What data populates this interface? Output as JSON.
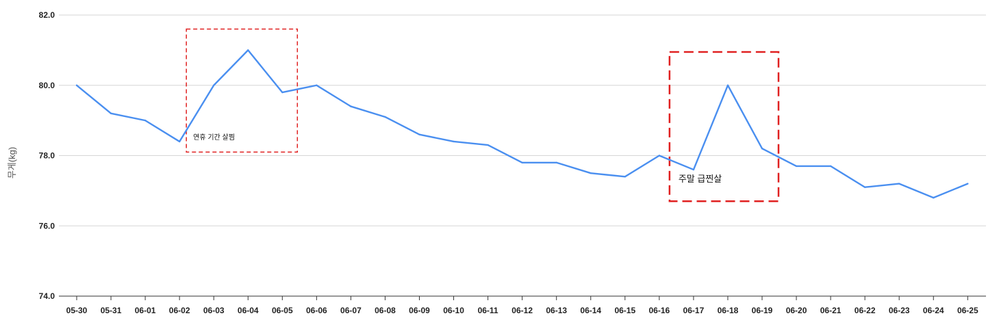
{
  "chart_data": {
    "type": "line",
    "title": "",
    "xlabel": "",
    "ylabel": "무게(kg)",
    "ylim": [
      74.0,
      82.0
    ],
    "yticks": [
      "74.0",
      "76.0",
      "78.0",
      "80.0",
      "82.0"
    ],
    "grid": true,
    "categories": [
      "05-30",
      "05-31",
      "06-01",
      "06-02",
      "06-03",
      "06-04",
      "06-05",
      "06-06",
      "06-07",
      "06-08",
      "06-09",
      "06-10",
      "06-11",
      "06-12",
      "06-13",
      "06-14",
      "06-15",
      "06-16",
      "06-17",
      "06-18",
      "06-19",
      "06-20",
      "06-21",
      "06-22",
      "06-23",
      "06-24",
      "06-25"
    ],
    "series": [
      {
        "values": [
          80.0,
          79.2,
          79.0,
          78.4,
          80.0,
          81.0,
          79.8,
          80.0,
          79.4,
          79.1,
          78.6,
          78.4,
          78.3,
          77.8,
          77.8,
          77.5,
          77.4,
          78.0,
          77.6,
          80.0,
          78.2,
          77.7,
          77.7,
          77.1,
          77.2,
          76.8,
          77.2
        ],
        "color": "#4a8ff0"
      }
    ],
    "annotations": [
      {
        "text": "연휴 기간 살찜",
        "from": "06-02",
        "to": "06-05",
        "y_top": 81.6,
        "y_bottom": 78.1,
        "color": "#e02020"
      },
      {
        "text": "주말 급찐살",
        "from": "06-16",
        "to": "06-19",
        "y_top": 80.95,
        "y_bottom": 76.7,
        "color": "#e02020"
      }
    ]
  }
}
